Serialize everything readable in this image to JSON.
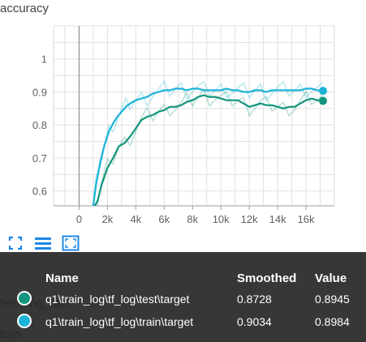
{
  "chart": {
    "title": "accuracy",
    "yticks": [
      "1",
      "0.9",
      "0.8",
      "0.7",
      "0.6"
    ],
    "xticks": [
      "0",
      "2k",
      "4k",
      "6k",
      "8k",
      "10k",
      "12k",
      "14k",
      "16k"
    ]
  },
  "chart_data": {
    "type": "line",
    "title": "accuracy",
    "xlabel": "",
    "ylabel": "",
    "xlim": [
      -1800,
      18000
    ],
    "ylim": [
      0.555,
      1.1
    ],
    "x_ticks": [
      0,
      2000,
      4000,
      6000,
      8000,
      10000,
      12000,
      14000,
      16000
    ],
    "y_ticks": [
      0.6,
      0.7,
      0.8,
      0.9,
      1.0
    ],
    "grid": true,
    "series": [
      {
        "name": "q1\\train_log\\tf_log\\test\\target",
        "color": "#12957c",
        "x": [
          1100,
          1300,
          1600,
          2000,
          2400,
          2800,
          3200,
          3600,
          4000,
          4400,
          4800,
          5200,
          5600,
          6000,
          6400,
          6800,
          7200,
          7600,
          8000,
          8400,
          8800,
          9200,
          9600,
          10000,
          10400,
          10800,
          11200,
          11600,
          12000,
          12400,
          12800,
          13200,
          13600,
          14000,
          14400,
          14800,
          15200,
          15600,
          16000,
          16400,
          16800,
          17200
        ],
        "values": [
          0.555,
          0.57,
          0.62,
          0.67,
          0.7,
          0.735,
          0.745,
          0.765,
          0.79,
          0.815,
          0.825,
          0.83,
          0.84,
          0.845,
          0.855,
          0.855,
          0.86,
          0.87,
          0.875,
          0.885,
          0.89,
          0.885,
          0.885,
          0.88,
          0.875,
          0.875,
          0.875,
          0.865,
          0.855,
          0.86,
          0.865,
          0.86,
          0.86,
          0.855,
          0.85,
          0.855,
          0.855,
          0.865,
          0.875,
          0.88,
          0.875,
          0.8728
        ]
      },
      {
        "name": "q1\\train_log\\tf_log\\train\\target",
        "color": "#1bb3d8",
        "x": [
          1000,
          1200,
          1500,
          1800,
          2100,
          2400,
          2700,
          3000,
          3300,
          3600,
          4000,
          4400,
          4800,
          5200,
          5600,
          6000,
          6400,
          6800,
          7200,
          7600,
          8000,
          8400,
          8800,
          9200,
          9600,
          10000,
          10400,
          10800,
          11200,
          11600,
          12000,
          12400,
          12800,
          13200,
          13600,
          14000,
          14400,
          14800,
          15200,
          15600,
          16000,
          16400,
          16800,
          17200
        ],
        "values": [
          0.555,
          0.62,
          0.69,
          0.74,
          0.78,
          0.805,
          0.825,
          0.84,
          0.855,
          0.865,
          0.875,
          0.88,
          0.885,
          0.895,
          0.9,
          0.905,
          0.905,
          0.91,
          0.91,
          0.905,
          0.91,
          0.91,
          0.905,
          0.905,
          0.905,
          0.905,
          0.91,
          0.905,
          0.905,
          0.9,
          0.9,
          0.905,
          0.905,
          0.9,
          0.905,
          0.905,
          0.905,
          0.905,
          0.905,
          0.905,
          0.91,
          0.91,
          0.905,
          0.9034
        ]
      }
    ]
  },
  "tooltip": {
    "headers": [
      "Name",
      "Smoothed",
      "Value"
    ],
    "rows": [
      {
        "name": "q1\\train_log\\tf_log\\test\\target",
        "smoothed": "0.8728",
        "value": "0.8945",
        "color": "#12957c"
      },
      {
        "name": "q1\\train_log\\tf_log\\train\\target",
        "smoothed": "0.9034",
        "value": "0.8984",
        "color": "#1bb3d8"
      }
    ]
  },
  "behind": {
    "row1": "learning_rate",
    "row2": "loss"
  },
  "toolbar": {
    "icons": [
      "fit-to-data-icon",
      "toggle-log-icon",
      "expand-icon"
    ],
    "color": "#1e88e5"
  }
}
